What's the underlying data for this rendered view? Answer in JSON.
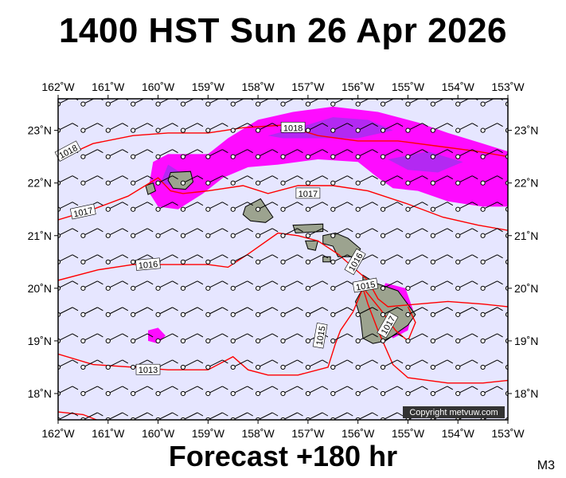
{
  "title": "1400 HST Sun 26 Apr 2026",
  "forecast_label": "Forecast +180 hr",
  "model_code": "M3",
  "copyright": "Copyright metvuw.com",
  "colors": {
    "ocean": "#e6e6ff",
    "rain_light": "#ff00ff",
    "rain_heavy": "#9933ee",
    "isobar": "#ff0000",
    "land": "#9ca38f"
  },
  "map": {
    "lon_range": [
      -162,
      -153
    ],
    "lat_range": [
      17.5,
      23.6
    ],
    "lon_labels": [
      {
        "lon": -162,
        "text": "162˚W"
      },
      {
        "lon": -161,
        "text": "161˚W"
      },
      {
        "lon": -160,
        "text": "160˚W"
      },
      {
        "lon": -159,
        "text": "159˚W"
      },
      {
        "lon": -158,
        "text": "158˚W"
      },
      {
        "lon": -157,
        "text": "157˚W"
      },
      {
        "lon": -156,
        "text": "156˚W"
      },
      {
        "lon": -155,
        "text": "155˚W"
      },
      {
        "lon": -154,
        "text": "154˚W"
      },
      {
        "lon": -153,
        "text": "153˚W"
      }
    ],
    "lat_labels": [
      {
        "lat": 18,
        "text": "18˚N"
      },
      {
        "lat": 19,
        "text": "19˚N"
      },
      {
        "lat": 20,
        "text": "20˚N"
      },
      {
        "lat": 21,
        "text": "21˚N"
      },
      {
        "lat": 22,
        "text": "22˚N"
      },
      {
        "lat": 23,
        "text": "23˚N"
      }
    ],
    "isobars": [
      {
        "label": "1018",
        "label_at": [
          -161.8,
          22.6
        ],
        "label_angle": -28,
        "points": [
          [
            -162,
            22.45
          ],
          [
            -161.3,
            22.75
          ],
          [
            -160.5,
            22.9
          ],
          [
            -159.8,
            22.95
          ],
          [
            -159,
            22.95
          ],
          [
            -158.3,
            23.05
          ],
          [
            -157.5,
            23.1
          ],
          [
            -156.8,
            22.9
          ],
          [
            -156,
            22.8
          ],
          [
            -155.2,
            22.8
          ],
          [
            -154.4,
            22.7
          ],
          [
            -153.6,
            22.6
          ],
          [
            -153,
            22.5
          ]
        ]
      },
      {
        "label": "1018",
        "label_at": [
          -157.3,
          23.05
        ],
        "label_angle": 0,
        "points": []
      },
      {
        "label": "1017",
        "label_at": [
          -161.5,
          21.45
        ],
        "label_angle": -12,
        "points": [
          [
            -162,
            21.3
          ],
          [
            -161.3,
            21.5
          ],
          [
            -160.6,
            21.75
          ],
          [
            -160.0,
            22.1
          ],
          [
            -159.75,
            21.85
          ],
          [
            -159.5,
            21.8
          ],
          [
            -159,
            21.85
          ],
          [
            -158.3,
            21.95
          ],
          [
            -157.8,
            21.8
          ],
          [
            -157.2,
            21.95
          ],
          [
            -156.5,
            21.95
          ],
          [
            -155.8,
            21.85
          ],
          [
            -155,
            21.6
          ],
          [
            -154.3,
            21.35
          ],
          [
            -153.6,
            21.2
          ],
          [
            -153,
            21.1
          ]
        ]
      },
      {
        "label": "1017",
        "label_at": [
          -157.0,
          21.8
        ],
        "label_angle": 0,
        "points": []
      },
      {
        "label": "1016",
        "label_at": [
          -160.2,
          20.45
        ],
        "label_angle": -5,
        "points": [
          [
            -162,
            20.15
          ],
          [
            -161.2,
            20.35
          ],
          [
            -160.5,
            20.45
          ],
          [
            -159.8,
            20.45
          ],
          [
            -159,
            20.45
          ],
          [
            -158.6,
            20.4
          ],
          [
            -158.2,
            20.65
          ],
          [
            -157.6,
            21.05
          ],
          [
            -157.2,
            21.0
          ],
          [
            -156.8,
            20.9
          ],
          [
            -156.4,
            20.65
          ],
          [
            -156.1,
            20.4
          ],
          [
            -155.8,
            20.15
          ],
          [
            -155.6,
            19.8
          ],
          [
            -155.4,
            19.65
          ],
          [
            -154.8,
            19.7
          ],
          [
            -154.2,
            19.75
          ],
          [
            -153.5,
            19.7
          ],
          [
            -153,
            19.65
          ]
        ]
      },
      {
        "label": "1016",
        "label_at": [
          -156.05,
          20.5
        ],
        "label_angle": -60,
        "points": []
      },
      {
        "label": "1015",
        "label_at": [
          -155.85,
          20.05
        ],
        "label_angle": -10,
        "points": [
          [
            -162,
            18.75
          ],
          [
            -161.3,
            18.55
          ],
          [
            -160.5,
            18.5
          ],
          [
            -159.8,
            18.45
          ],
          [
            -159,
            18.45
          ],
          [
            -158.5,
            18.7
          ],
          [
            -158.2,
            18.45
          ],
          [
            -157.8,
            18.35
          ],
          [
            -157.2,
            18.35
          ],
          [
            -156.6,
            18.5
          ],
          [
            -156.45,
            18.95
          ],
          [
            -156.35,
            19.2
          ],
          [
            -156.1,
            19.55
          ],
          [
            -155.9,
            20.0
          ],
          [
            -155.8,
            19.7
          ],
          [
            -155.6,
            19.2
          ],
          [
            -155.3,
            18.55
          ],
          [
            -155,
            18.3
          ],
          [
            -154.2,
            18.2
          ],
          [
            -153.5,
            18.2
          ],
          [
            -153,
            18.25
          ]
        ]
      },
      {
        "label": "1015",
        "label_at": [
          -156.75,
          19.1
        ],
        "label_angle": -80,
        "points": []
      },
      {
        "label": "1013",
        "label_at": [
          -160.2,
          18.45
        ],
        "label_angle": 0,
        "points": []
      },
      {
        "label": "1017",
        "label_at": [
          -155.4,
          19.3
        ],
        "label_angle": -60,
        "points": [
          [
            -155.85,
            19.95
          ],
          [
            -155.55,
            19.6
          ],
          [
            -155.25,
            19.2
          ],
          [
            -155.0,
            19.0
          ],
          [
            -154.85,
            19.35
          ],
          [
            -155.0,
            19.65
          ]
        ]
      },
      {
        "label": "",
        "label_at": null,
        "label_angle": 0,
        "points": [
          [
            -162,
            17.65
          ],
          [
            -161.5,
            17.6
          ],
          [
            -161.1,
            17.45
          ]
        ]
      }
    ],
    "rain_regions": [
      {
        "level": "light",
        "points": [
          [
            -160.1,
            22.4
          ],
          [
            -159.8,
            22.55
          ],
          [
            -159,
            22.55
          ],
          [
            -158.6,
            22.85
          ],
          [
            -158.0,
            23.2
          ],
          [
            -157.3,
            23.35
          ],
          [
            -156.5,
            23.45
          ],
          [
            -155.6,
            23.35
          ],
          [
            -154.8,
            23.15
          ],
          [
            -154.2,
            22.95
          ],
          [
            -153.5,
            22.75
          ],
          [
            -153,
            22.6
          ],
          [
            -153,
            21.55
          ],
          [
            -153.5,
            21.55
          ],
          [
            -154.2,
            21.65
          ],
          [
            -154.8,
            21.85
          ],
          [
            -155.3,
            21.9
          ],
          [
            -155.6,
            22.1
          ],
          [
            -156.0,
            22.4
          ],
          [
            -156.8,
            22.45
          ],
          [
            -157.6,
            22.35
          ],
          [
            -158.2,
            22.3
          ],
          [
            -158.7,
            22.1
          ],
          [
            -159.1,
            21.8
          ],
          [
            -159.6,
            21.5
          ],
          [
            -160.0,
            21.55
          ],
          [
            -160.2,
            21.85
          ]
        ]
      },
      {
        "level": "light",
        "points": [
          [
            -155.45,
            20.1
          ],
          [
            -155.05,
            20.0
          ],
          [
            -154.9,
            19.6
          ],
          [
            -155.0,
            19.2
          ],
          [
            -155.3,
            19.05
          ],
          [
            -155.55,
            19.35
          ],
          [
            -155.6,
            19.75
          ]
        ]
      },
      {
        "level": "light",
        "points": [
          [
            -160.2,
            19.2
          ],
          [
            -160.0,
            19.25
          ],
          [
            -159.85,
            19.1
          ],
          [
            -160.0,
            18.95
          ],
          [
            -160.2,
            19.0
          ]
        ]
      },
      {
        "level": "heavy",
        "points": [
          [
            -157.8,
            22.9
          ],
          [
            -157.2,
            23.05
          ],
          [
            -156.5,
            23.25
          ],
          [
            -155.8,
            23.2
          ],
          [
            -155.3,
            23.0
          ],
          [
            -156,
            22.85
          ],
          [
            -156.8,
            22.85
          ],
          [
            -157.5,
            22.85
          ]
        ]
      },
      {
        "level": "heavy",
        "points": [
          [
            -155.4,
            22.45
          ],
          [
            -154.6,
            22.6
          ],
          [
            -153.9,
            22.4
          ],
          [
            -154.4,
            22.2
          ],
          [
            -155.0,
            22.25
          ]
        ]
      },
      {
        "level": "heavy",
        "points": [
          [
            -159.8,
            22.35
          ],
          [
            -159.55,
            22.2
          ],
          [
            -159.7,
            21.95
          ],
          [
            -159.95,
            22.0
          ]
        ]
      }
    ],
    "islands": [
      {
        "name": "Niihau",
        "points": [
          [
            -160.25,
            21.95
          ],
          [
            -160.1,
            22.0
          ],
          [
            -160.05,
            21.85
          ],
          [
            -160.2,
            21.78
          ]
        ]
      },
      {
        "name": "Kauai",
        "points": [
          [
            -159.75,
            22.2
          ],
          [
            -159.35,
            22.22
          ],
          [
            -159.3,
            22.02
          ],
          [
            -159.45,
            21.88
          ],
          [
            -159.7,
            21.9
          ],
          [
            -159.8,
            22.05
          ]
        ]
      },
      {
        "name": "Oahu",
        "points": [
          [
            -158.25,
            21.55
          ],
          [
            -157.95,
            21.7
          ],
          [
            -157.7,
            21.35
          ],
          [
            -157.85,
            21.25
          ],
          [
            -158.15,
            21.28
          ],
          [
            -158.3,
            21.4
          ]
        ]
      },
      {
        "name": "Molokai",
        "points": [
          [
            -157.3,
            21.2
          ],
          [
            -156.7,
            21.22
          ],
          [
            -156.7,
            21.08
          ],
          [
            -157.25,
            21.05
          ]
        ]
      },
      {
        "name": "Lanai",
        "points": [
          [
            -157.05,
            20.9
          ],
          [
            -156.8,
            20.9
          ],
          [
            -156.85,
            20.72
          ],
          [
            -157.0,
            20.75
          ]
        ]
      },
      {
        "name": "Maui",
        "points": [
          [
            -156.7,
            21.0
          ],
          [
            -156.45,
            21.05
          ],
          [
            -156.2,
            20.95
          ],
          [
            -155.95,
            20.75
          ],
          [
            -156.05,
            20.6
          ],
          [
            -156.4,
            20.6
          ],
          [
            -156.5,
            20.8
          ],
          [
            -156.7,
            20.85
          ]
        ]
      },
      {
        "name": "Kahoolawe",
        "points": [
          [
            -156.7,
            20.6
          ],
          [
            -156.55,
            20.6
          ],
          [
            -156.55,
            20.5
          ],
          [
            -156.7,
            20.5
          ]
        ]
      },
      {
        "name": "Hawaii",
        "points": [
          [
            -155.9,
            20.25
          ],
          [
            -155.65,
            20.1
          ],
          [
            -155.2,
            19.95
          ],
          [
            -154.85,
            19.5
          ],
          [
            -155.0,
            19.3
          ],
          [
            -155.45,
            19.0
          ],
          [
            -155.7,
            18.95
          ],
          [
            -155.9,
            19.05
          ],
          [
            -155.95,
            19.45
          ],
          [
            -156.05,
            19.75
          ],
          [
            -155.9,
            20.0
          ]
        ]
      }
    ],
    "wind_grid": {
      "lon_start": -162,
      "lon_end": -153,
      "lon_step": 0.5,
      "lat_start": 17.5,
      "lat_end": 23.5,
      "lat_step": 0.5,
      "direction": "northeast",
      "barbs": 1
    }
  }
}
